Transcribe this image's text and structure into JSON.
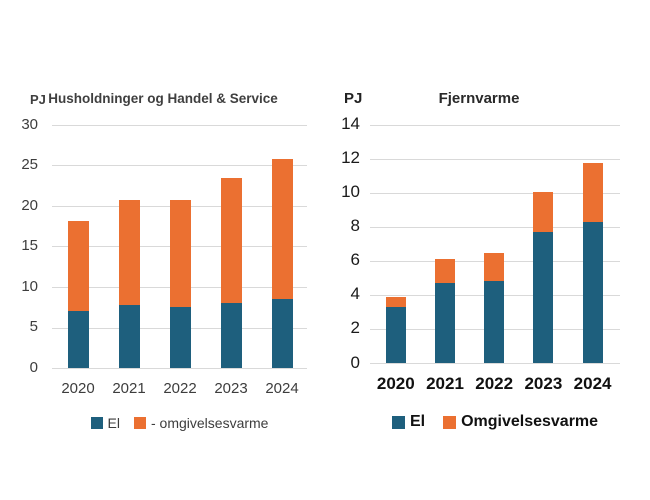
{
  "figure": {
    "background": "#ffffff",
    "gridline_color": "#d9d9d9"
  },
  "chart_data": [
    {
      "type": "bar",
      "stacked": true,
      "title": "Husholdninger og Handel & Service",
      "unit_label": "PJ",
      "categories": [
        "2020",
        "2021",
        "2022",
        "2023",
        "2024"
      ],
      "series": [
        {
          "name": "El",
          "color": "#1e5f7d",
          "values": [
            7.0,
            7.8,
            7.5,
            8.0,
            8.5
          ]
        },
        {
          "name": "- omgivelsesvarme",
          "color": "#eb7031",
          "values": [
            11.1,
            12.9,
            13.2,
            15.4,
            17.3
          ]
        }
      ],
      "totals": [
        18.1,
        20.7,
        20.7,
        23.4,
        25.8
      ],
      "ylim": [
        0,
        30
      ],
      "ytick_step": 5,
      "yticks": [
        0,
        5,
        10,
        15,
        20,
        25,
        30
      ],
      "grid": true,
      "legend_position": "bottom"
    },
    {
      "type": "bar",
      "stacked": true,
      "title": "Fjernvarme",
      "unit_label": "PJ",
      "categories": [
        "2020",
        "2021",
        "2022",
        "2023",
        "2024"
      ],
      "series": [
        {
          "name": "El",
          "color": "#1e5f7d",
          "values": [
            3.3,
            4.7,
            4.8,
            7.7,
            8.3
          ]
        },
        {
          "name": "Omgivelsesvarme",
          "color": "#eb7031",
          "values": [
            0.55,
            1.4,
            1.65,
            2.35,
            3.45
          ]
        }
      ],
      "totals": [
        3.85,
        6.1,
        6.45,
        10.05,
        11.75
      ],
      "ylim": [
        0,
        14
      ],
      "ytick_step": 2,
      "yticks": [
        0,
        2,
        4,
        6,
        8,
        10,
        12,
        14
      ],
      "grid": true,
      "legend_position": "bottom"
    }
  ]
}
